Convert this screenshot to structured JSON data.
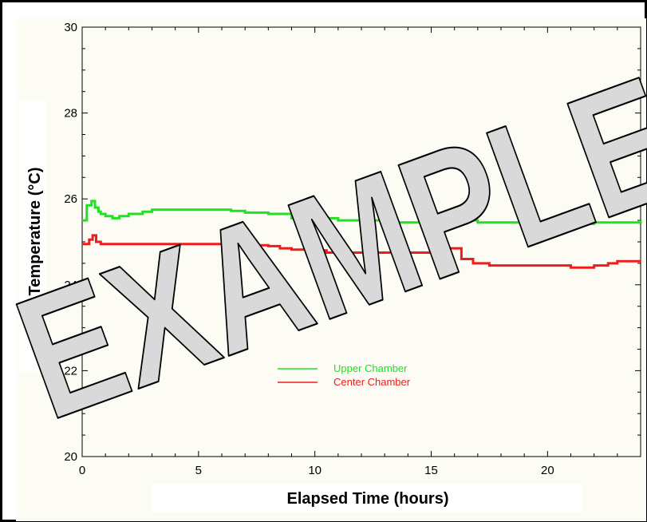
{
  "chart_data": {
    "type": "line",
    "title": "",
    "xlabel": "Elapsed Time (hours)",
    "ylabel": "Temperature (°C)",
    "xlim": [
      0,
      24
    ],
    "ylim": [
      20,
      30
    ],
    "x_ticks": [
      0,
      5,
      10,
      15,
      20
    ],
    "y_ticks": [
      20,
      22,
      24,
      26,
      28,
      30
    ],
    "grid": false,
    "legend_position": "center-left",
    "watermark": "EXAMPLE",
    "series": [
      {
        "name": "Upper Chamber",
        "color": "#22e022",
        "x": [
          0,
          0.2,
          0.4,
          0.55,
          0.7,
          0.8,
          1.0,
          1.3,
          1.6,
          2.0,
          2.6,
          3.0,
          4.0,
          5.0,
          6.0,
          6.4,
          7.0,
          8.0,
          8.6,
          9.0,
          10.0,
          11.0,
          12.0,
          13.0,
          14.0,
          15.0,
          16.0,
          17.0,
          18.0,
          19.0,
          20.0,
          21.0,
          22.0,
          23.0,
          24.0
        ],
        "values": [
          25.5,
          25.85,
          25.95,
          25.8,
          25.7,
          25.65,
          25.6,
          25.55,
          25.6,
          25.65,
          25.7,
          25.75,
          25.75,
          25.75,
          25.75,
          25.72,
          25.68,
          25.65,
          25.65,
          25.55,
          25.55,
          25.5,
          25.5,
          25.45,
          25.45,
          25.45,
          25.5,
          25.45,
          25.45,
          25.45,
          25.45,
          25.42,
          25.45,
          25.45,
          25.5
        ]
      },
      {
        "name": "Center Chamber",
        "color": "#ee1c1c",
        "x": [
          0,
          0.3,
          0.45,
          0.6,
          0.8,
          1.5,
          3.0,
          4.0,
          5.0,
          6.0,
          7.0,
          8.0,
          8.5,
          9.0,
          10.0,
          10.5,
          11.0,
          12.0,
          13.0,
          14.0,
          15.0,
          15.8,
          16.3,
          16.8,
          17.5,
          18.0,
          19.0,
          20.0,
          21.0,
          22.0,
          22.6,
          23.0,
          24.0
        ],
        "values": [
          24.95,
          25.05,
          25.15,
          25.0,
          24.95,
          24.95,
          24.95,
          24.95,
          24.95,
          24.95,
          24.92,
          24.9,
          24.85,
          24.82,
          24.8,
          24.75,
          24.75,
          24.75,
          24.75,
          24.75,
          24.75,
          24.85,
          24.6,
          24.5,
          24.45,
          24.45,
          24.45,
          24.45,
          24.4,
          24.45,
          24.5,
          24.55,
          24.55
        ]
      }
    ]
  }
}
